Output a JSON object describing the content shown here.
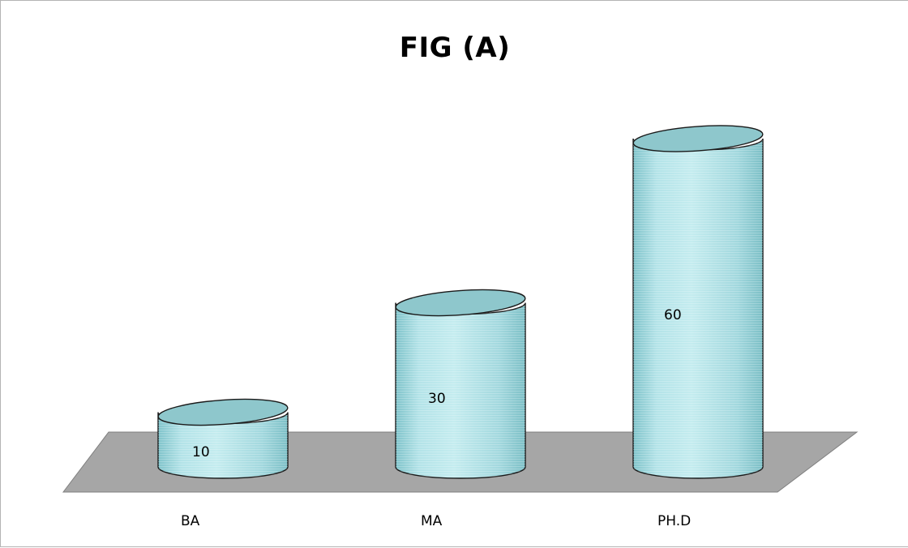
{
  "chart_data": {
    "type": "bar",
    "style": "3d-cylinder",
    "title": "FIG (A)",
    "categories": [
      "BA",
      "MA",
      "PH.D"
    ],
    "values": [
      10,
      30,
      60
    ],
    "xlabel": "",
    "ylabel": "",
    "ylim": [
      0,
      60
    ],
    "grid": false,
    "legend": "none",
    "data_labels": true,
    "colors": {
      "bar_fill": "#a9dde3",
      "bar_top": "#8ec7cc",
      "bar_stroke": "#1a1a1a",
      "floor_fill": "#a6a6a6",
      "floor_stroke": "#7f7f7f"
    }
  }
}
